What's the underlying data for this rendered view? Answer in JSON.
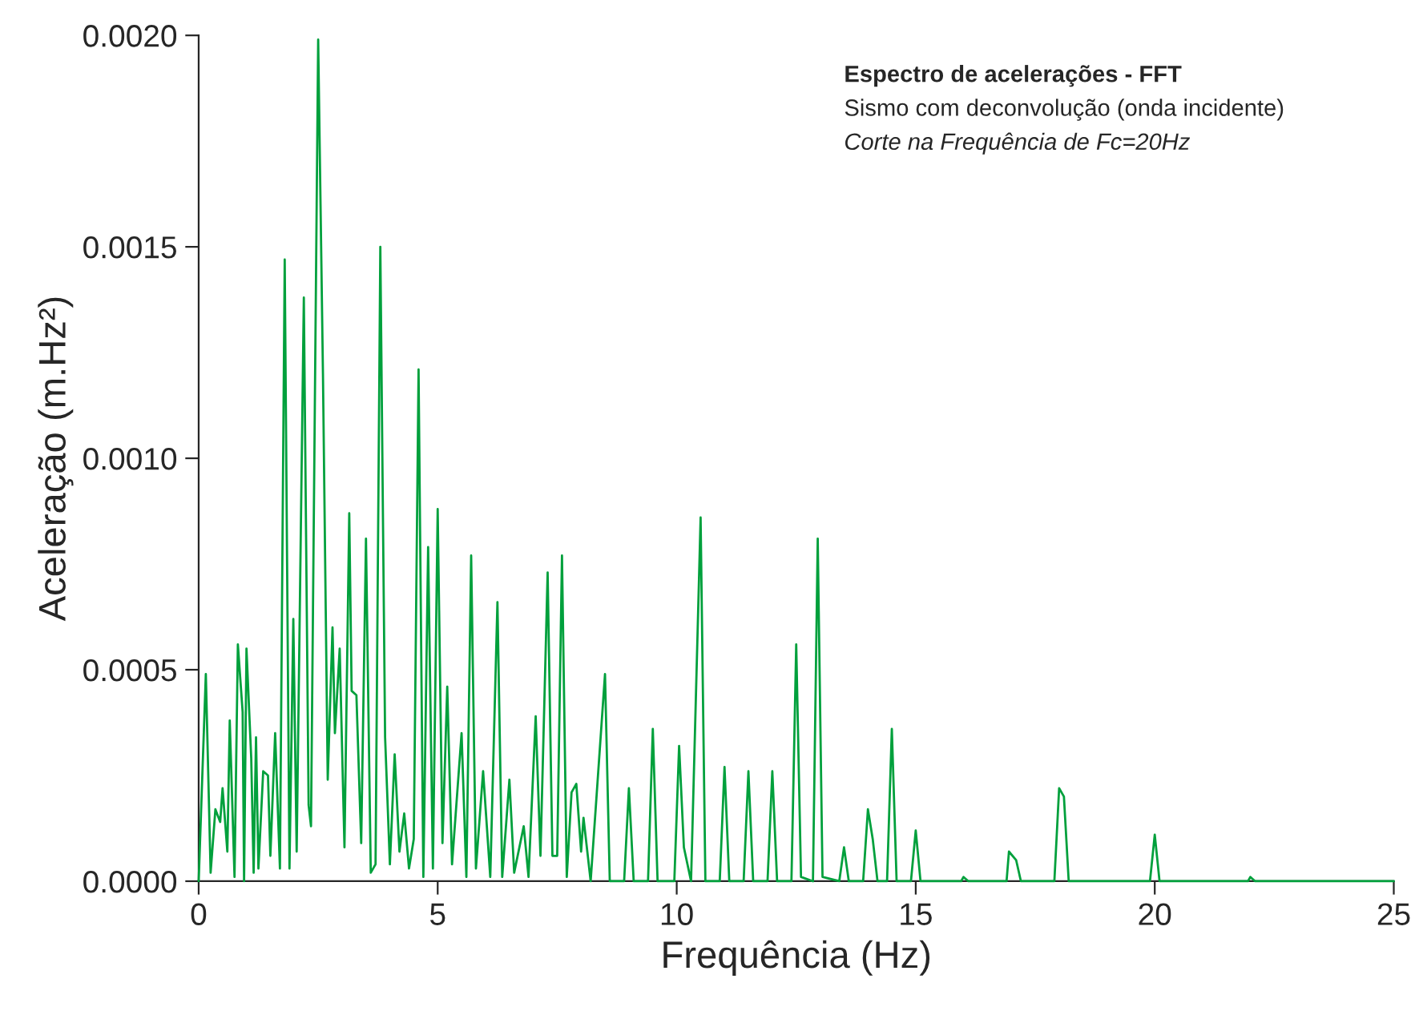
{
  "chart_data": {
    "type": "line",
    "title": "Espectro de acelerações - FFT",
    "subtitle": "Sismo com deconvolução (onda incidente)",
    "annotations": [
      "Corte na Frequência de Fc=20Hz"
    ],
    "xlabel": "Frequência (Hz)",
    "ylabel": "Aceleração (m.Hz²)",
    "xlim": [
      0,
      25
    ],
    "xticks": [
      0,
      5,
      10,
      15,
      20,
      25
    ],
    "ylim": [
      0,
      0.002
    ],
    "yticks": [
      {
        "value": 0,
        "label": "0.0000"
      },
      {
        "value": 0.0005,
        "label": "0.0005"
      },
      {
        "value": 0.001,
        "label": "0.0010"
      },
      {
        "value": 0.0015,
        "label": "0.0015"
      },
      {
        "value": 0.002,
        "label": "0.0020"
      }
    ],
    "grid": false,
    "marker": "none",
    "line_style": "solid",
    "series": [
      {
        "color": "#00a03c",
        "x": [
          0.0,
          0.15,
          0.25,
          0.35,
          0.45,
          0.5,
          0.6,
          0.65,
          0.75,
          0.82,
          0.92,
          0.95,
          1.0,
          1.1,
          1.15,
          1.2,
          1.25,
          1.35,
          1.45,
          1.5,
          1.6,
          1.7,
          1.8,
          1.9,
          1.98,
          2.05,
          2.2,
          2.3,
          2.35,
          2.5,
          2.6,
          2.7,
          2.8,
          2.85,
          2.95,
          3.05,
          3.15,
          3.2,
          3.3,
          3.4,
          3.5,
          3.6,
          3.7,
          3.8,
          3.9,
          4.0,
          4.1,
          4.2,
          4.3,
          4.4,
          4.5,
          4.6,
          4.7,
          4.8,
          4.9,
          5.0,
          5.1,
          5.2,
          5.3,
          5.5,
          5.6,
          5.7,
          5.8,
          5.95,
          6.1,
          6.25,
          6.35,
          6.5,
          6.6,
          6.8,
          6.9,
          7.05,
          7.15,
          7.3,
          7.4,
          7.5,
          7.6,
          7.7,
          7.8,
          7.9,
          8.0,
          8.05,
          8.2,
          8.5,
          8.6,
          8.9,
          9.0,
          9.1,
          9.4,
          9.5,
          9.6,
          9.95,
          10.05,
          10.15,
          10.3,
          10.5,
          10.6,
          10.9,
          11.0,
          11.1,
          11.4,
          11.5,
          11.6,
          11.9,
          12.0,
          12.1,
          12.4,
          12.5,
          12.6,
          12.85,
          12.95,
          13.05,
          13.4,
          13.5,
          13.6,
          13.9,
          14.0,
          14.1,
          14.2,
          14.4,
          14.5,
          14.6,
          14.9,
          15.0,
          15.1,
          15.95,
          16.0,
          16.1,
          16.9,
          16.95,
          17.1,
          17.2,
          17.9,
          18.0,
          18.1,
          18.2,
          19.9,
          20.0,
          20.1,
          21.95,
          22.0,
          22.1,
          25.0
        ],
        "values": [
          0,
          0.00049,
          2e-05,
          0.00017,
          0.00014,
          0.00022,
          7e-05,
          0.00038,
          1e-05,
          0.00056,
          0.0004,
          0,
          0.00055,
          0.00029,
          2e-05,
          0.00034,
          3e-05,
          0.00026,
          0.00025,
          6e-05,
          0.00035,
          3e-05,
          0.00147,
          3e-05,
          0.00062,
          7e-05,
          0.00138,
          0.00018,
          0.00013,
          0.00199,
          0.0012,
          0.00024,
          0.0006,
          0.00035,
          0.00055,
          8e-05,
          0.00087,
          0.00045,
          0.00044,
          9e-05,
          0.00081,
          2e-05,
          4e-05,
          0.0015,
          0.00034,
          4e-05,
          0.0003,
          7e-05,
          0.00016,
          3e-05,
          0.0001,
          0.00121,
          1e-05,
          0.00079,
          3e-05,
          0.00088,
          9e-05,
          0.00046,
          4e-05,
          0.00035,
          1e-05,
          0.00077,
          3e-05,
          0.00026,
          1e-05,
          0.00066,
          1e-05,
          0.00024,
          2e-05,
          0.00013,
          1e-05,
          0.00039,
          6e-05,
          0.00073,
          6e-05,
          6e-05,
          0.00077,
          1e-05,
          0.00021,
          0.00023,
          7e-05,
          0.00015,
          0,
          0.00049,
          0,
          0,
          0.00022,
          0,
          0,
          0.00036,
          0,
          0,
          0.00032,
          8e-05,
          0,
          0.00086,
          0,
          0,
          0.00027,
          0,
          0,
          0.00026,
          0,
          0,
          0.00026,
          0,
          0,
          0.00056,
          1e-05,
          0,
          0.00081,
          1e-05,
          0,
          8e-05,
          0,
          0,
          0.00017,
          0.0001,
          0,
          0,
          0.00036,
          0,
          0,
          0.00012,
          0,
          0,
          1e-05,
          0,
          0,
          7e-05,
          5e-05,
          0,
          0,
          0.00022,
          0.0002,
          0,
          0,
          0.00011,
          0,
          0,
          1e-05,
          0,
          0
        ]
      }
    ]
  }
}
